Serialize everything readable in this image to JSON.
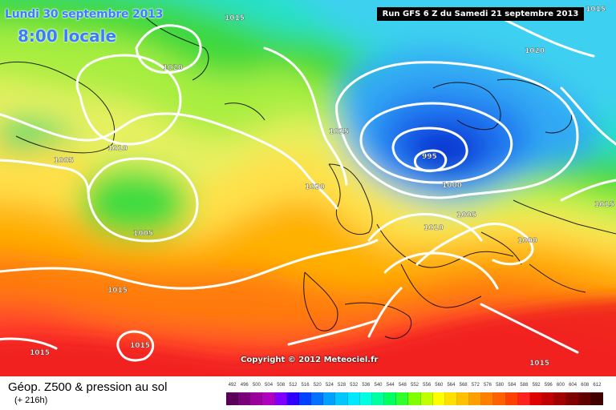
{
  "header": {
    "date_label": "Lundi 30 septembre 2013",
    "time_label": "8:00 locale",
    "run_label": "Run GFS 6 Z du Samedi 21 septembre 2013"
  },
  "map": {
    "copyright": "Copyright © 2012 Meteociel.fr",
    "isobar_labels": [
      "1015",
      "1020",
      "1010",
      "1005",
      "1020",
      "1015",
      "1005",
      "1015",
      "1015",
      "1015",
      "1020",
      "1015",
      "995",
      "1000",
      "1005",
      "1010",
      "1000",
      "1015",
      "1015"
    ]
  },
  "legend": {
    "title": "Géop. Z500 & pression au sol",
    "subtitle": "(+ 216h)",
    "scale_values": [
      "492",
      "496",
      "500",
      "504",
      "508",
      "512",
      "516",
      "520",
      "524",
      "528",
      "532",
      "536",
      "540",
      "544",
      "548",
      "552",
      "556",
      "560",
      "564",
      "568",
      "572",
      "576",
      "580",
      "584",
      "588",
      "592",
      "596",
      "600",
      "604",
      "608",
      "612"
    ],
    "scale_colors": [
      "#5a005a",
      "#7a007a",
      "#9a009a",
      "#b000c0",
      "#8000ff",
      "#3000ff",
      "#0040ff",
      "#0070ff",
      "#00a0ff",
      "#00c8ff",
      "#00e8ff",
      "#00ffe0",
      "#00ffa0",
      "#00ff60",
      "#30ff30",
      "#80ff00",
      "#c0ff00",
      "#ffff00",
      "#ffe000",
      "#ffc000",
      "#ffa000",
      "#ff8000",
      "#ff6000",
      "#ff4000",
      "#ff2020",
      "#e00000",
      "#c00000",
      "#a00000",
      "#800000",
      "#600000",
      "#400000"
    ]
  }
}
